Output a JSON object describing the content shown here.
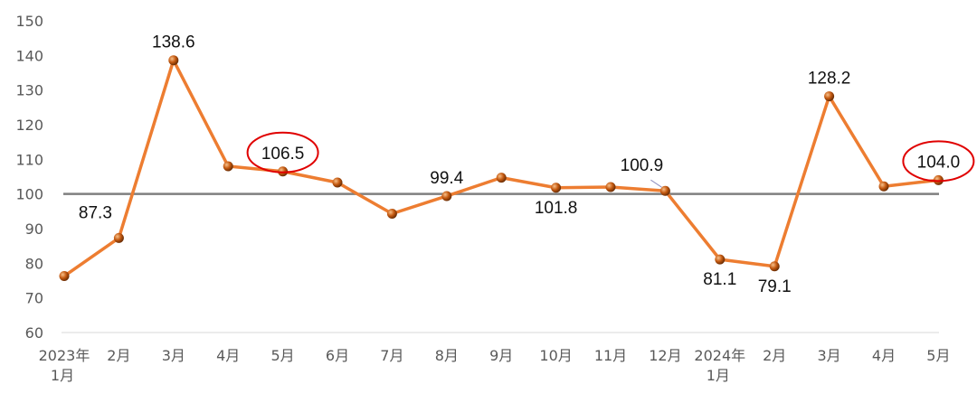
{
  "chart_data": {
    "type": "line",
    "title": "",
    "xlabel": "",
    "ylabel": "",
    "ylim": [
      60,
      150
    ],
    "yticks": [
      60,
      70,
      80,
      90,
      100,
      110,
      120,
      130,
      140,
      150
    ],
    "grid": false,
    "legend": "none",
    "reference_line": {
      "y": 100,
      "color": "#7f7f7f"
    },
    "categories": [
      {
        "line1": "2023年",
        "line2": "1月"
      },
      {
        "line1": "2月",
        "line2": ""
      },
      {
        "line1": "3月",
        "line2": ""
      },
      {
        "line1": "4月",
        "line2": ""
      },
      {
        "line1": "5月",
        "line2": ""
      },
      {
        "line1": "6月",
        "line2": ""
      },
      {
        "line1": "7月",
        "line2": ""
      },
      {
        "line1": "8月",
        "line2": ""
      },
      {
        "line1": "9月",
        "line2": ""
      },
      {
        "line1": "10月",
        "line2": ""
      },
      {
        "line1": "11月",
        "line2": ""
      },
      {
        "line1": "12月",
        "line2": ""
      },
      {
        "line1": "2024年",
        "line2": "1月"
      },
      {
        "line1": "2月",
        "line2": ""
      },
      {
        "line1": "3月",
        "line2": ""
      },
      {
        "line1": "4月",
        "line2": ""
      },
      {
        "line1": "5月",
        "line2": ""
      }
    ],
    "series": [
      {
        "values": [
          76.3,
          87.3,
          138.6,
          108.0,
          106.5,
          103.3,
          94.3,
          99.4,
          104.7,
          101.8,
          102.0,
          100.9,
          81.1,
          79.1,
          128.2,
          102.2,
          104.0
        ],
        "color": "#ed7d31",
        "marker_color": "#c55a11"
      }
    ],
    "data_labels": [
      {
        "index": 1,
        "text": "87.3",
        "position": "above-left"
      },
      {
        "index": 2,
        "text": "138.6",
        "position": "above"
      },
      {
        "index": 4,
        "text": "106.5",
        "position": "above",
        "circled": true
      },
      {
        "index": 7,
        "text": "99.4",
        "position": "above"
      },
      {
        "index": 9,
        "text": "101.8",
        "position": "below"
      },
      {
        "index": 11,
        "text": "100.9",
        "position": "above-left"
      },
      {
        "index": 12,
        "text": "81.1",
        "position": "below"
      },
      {
        "index": 13,
        "text": "79.1",
        "position": "below"
      },
      {
        "index": 14,
        "text": "128.2",
        "position": "above"
      },
      {
        "index": 16,
        "text": "104.0",
        "position": "above",
        "circled": true
      }
    ],
    "highlight_color": "#e00000"
  }
}
